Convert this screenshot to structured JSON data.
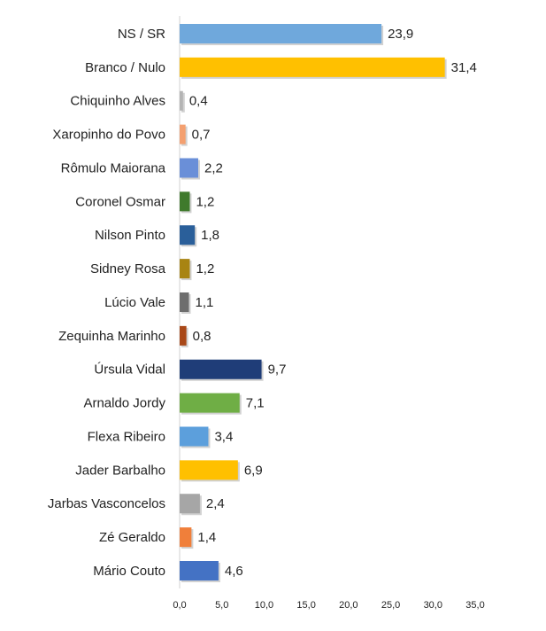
{
  "chart_data": {
    "type": "bar",
    "orientation": "horizontal",
    "categories": [
      "NS / SR",
      "Branco / Nulo",
      "Chiquinho Alves",
      "Xaropinho do Povo",
      "Rômulo Maiorana",
      "Coronel Osmar",
      "Nilson Pinto",
      "Sidney Rosa",
      "Lúcio Vale",
      "Zequinha Marinho",
      "Úrsula Vidal",
      "Arnaldo Jordy",
      "Flexa Ribeiro",
      "Jader Barbalho",
      "Jarbas Vasconcelos",
      "Zé Geraldo",
      "Mário Couto"
    ],
    "values": [
      23.9,
      31.4,
      0.4,
      0.7,
      2.2,
      1.2,
      1.8,
      1.2,
      1.1,
      0.8,
      9.7,
      7.1,
      3.4,
      6.9,
      2.4,
      1.4,
      4.6
    ],
    "value_labels": [
      "23,9",
      "31,4",
      "0,4",
      "0,7",
      "2,2",
      "1,2",
      "1,8",
      "1,2",
      "1,1",
      "0,8",
      "9,7",
      "7,1",
      "3,4",
      "6,9",
      "2,4",
      "1,4",
      "4,6"
    ],
    "colors": [
      "#6fa8dc",
      "#ffc000",
      "#b4b4b4",
      "#f4a070",
      "#6a8fd8",
      "#3f7a2c",
      "#2a5f9a",
      "#a88412",
      "#6e6e6e",
      "#a94818",
      "#1f3d78",
      "#6fae45",
      "#5c9fdc",
      "#ffc000",
      "#a6a6a6",
      "#f07f3a",
      "#4472c4"
    ],
    "xlim": [
      0,
      35
    ],
    "xticks": [
      {
        "value": 0,
        "label": "0,0"
      },
      {
        "value": 5,
        "label": "5,0"
      },
      {
        "value": 10,
        "label": "10,0"
      },
      {
        "value": 15,
        "label": "15,0"
      },
      {
        "value": 20,
        "label": "20,0"
      },
      {
        "value": 25,
        "label": "25,0"
      },
      {
        "value": 30,
        "label": "30,0"
      },
      {
        "value": 35,
        "label": "35,0"
      }
    ]
  }
}
